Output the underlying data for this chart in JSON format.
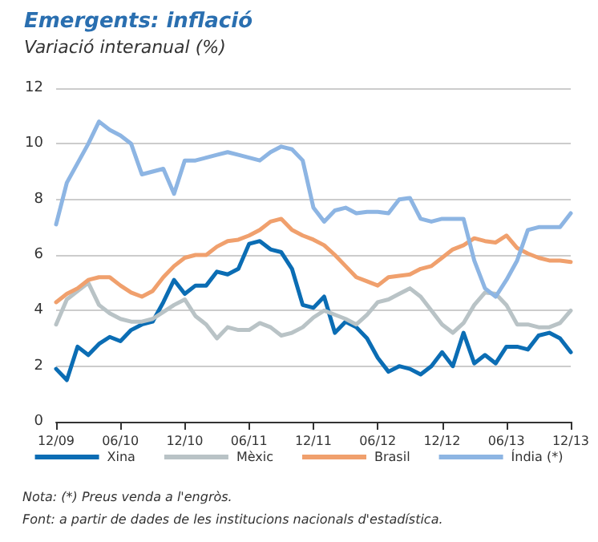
{
  "chart_data": {
    "type": "line",
    "title": "Emergents: inflació",
    "subtitle": "Variació interanual (%)",
    "categories": [
      "12/09",
      null,
      null,
      null,
      null,
      null,
      "06/10",
      null,
      null,
      null,
      null,
      null,
      "12/10",
      null,
      null,
      null,
      null,
      null,
      "06/11",
      null,
      null,
      null,
      null,
      null,
      "12/11",
      null,
      null,
      null,
      null,
      null,
      "06/12",
      null,
      null,
      null,
      null,
      null,
      "12/12",
      null,
      null,
      null,
      null,
      null,
      "06/13",
      null,
      null,
      null,
      null,
      null,
      "12/13"
    ],
    "series": [
      {
        "name": "Xina",
        "color": "#0b6db4",
        "values": [
          1.9,
          1.5,
          2.7,
          2.4,
          2.8,
          3.05,
          2.9,
          3.3,
          3.5,
          3.6,
          4.3,
          5.1,
          4.6,
          4.9,
          4.9,
          5.4,
          5.3,
          5.5,
          6.4,
          6.5,
          6.2,
          6.1,
          5.5,
          4.2,
          4.1,
          4.5,
          3.2,
          3.6,
          3.4,
          3.0,
          2.3,
          1.8,
          2.0,
          1.9,
          1.7,
          2.0,
          2.5,
          2.0,
          3.2,
          2.1,
          2.4,
          2.1,
          2.7,
          2.7,
          2.6,
          3.1,
          3.2,
          3.0,
          2.5
        ]
      },
      {
        "name": "Mèxic",
        "color": "#b9c3c6",
        "values": [
          3.5,
          4.4,
          4.7,
          5.0,
          4.2,
          3.9,
          3.7,
          3.6,
          3.6,
          3.7,
          3.95,
          4.2,
          4.4,
          3.8,
          3.5,
          3.0,
          3.4,
          3.3,
          3.3,
          3.55,
          3.4,
          3.1,
          3.2,
          3.4,
          3.75,
          4.0,
          3.85,
          3.7,
          3.5,
          3.85,
          4.3,
          4.4,
          4.6,
          4.8,
          4.5,
          4.0,
          3.5,
          3.2,
          3.55,
          4.2,
          4.65,
          4.6,
          4.2,
          3.5,
          3.5,
          3.4,
          3.4,
          3.55,
          4.0
        ]
      },
      {
        "name": "Brasil",
        "color": "#f0a06d",
        "values": [
          4.3,
          4.6,
          4.8,
          5.1,
          5.2,
          5.2,
          4.9,
          4.65,
          4.5,
          4.7,
          5.2,
          5.6,
          5.9,
          6.0,
          6.0,
          6.3,
          6.5,
          6.55,
          6.7,
          6.9,
          7.2,
          7.3,
          6.9,
          6.7,
          6.55,
          6.35,
          6.0,
          5.6,
          5.2,
          5.05,
          4.9,
          5.2,
          5.25,
          5.3,
          5.5,
          5.6,
          5.9,
          6.2,
          6.35,
          6.6,
          6.5,
          6.45,
          6.7,
          6.25,
          6.05,
          5.9,
          5.8,
          5.8,
          5.75
        ]
      },
      {
        "name": "Índia (*)",
        "color": "#8db5e3",
        "values": [
          7.1,
          8.6,
          9.3,
          10.0,
          10.8,
          10.5,
          10.3,
          10.0,
          8.9,
          9.0,
          9.1,
          8.2,
          9.4,
          9.4,
          9.5,
          9.6,
          9.7,
          9.6,
          9.5,
          9.4,
          9.7,
          9.9,
          9.8,
          9.4,
          7.7,
          7.2,
          7.6,
          7.7,
          7.5,
          7.55,
          7.55,
          7.5,
          8.0,
          8.05,
          7.3,
          7.2,
          7.3,
          7.3,
          7.3,
          5.8,
          4.8,
          4.5,
          5.1,
          5.8,
          6.9,
          7.0,
          7.0,
          7.0,
          7.5
        ]
      }
    ],
    "ylim": [
      0,
      12
    ],
    "yticks": [
      0,
      2,
      4,
      6,
      8,
      10,
      12
    ],
    "grid": "y",
    "legend": "bottom",
    "marker": "none",
    "line_style": "solid",
    "annotations": [
      "Nota: (*) Preus venda a l'engròs.",
      "Font: a partir de dades de les institucions nacionals d'estadística."
    ]
  }
}
